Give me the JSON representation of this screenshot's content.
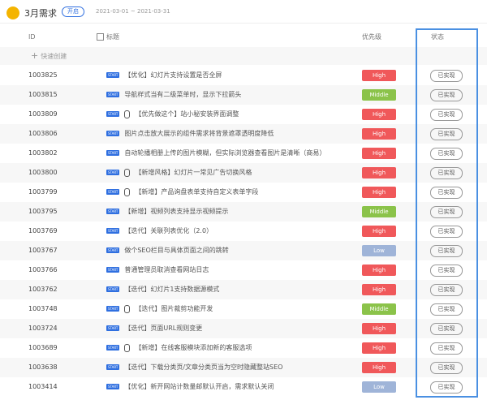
{
  "header": {
    "title": "3月需求",
    "badge": "开启",
    "date_range": "2021-03-01 ~ 2021-03-31"
  },
  "table": {
    "columns": [
      "ID",
      "标题",
      "优先级",
      "状态"
    ],
    "quick_create": "快速创建",
    "tag": "START",
    "rows": [
      {
        "id": "1003825",
        "title": "【优化】幻灯片支持设置是否全屏",
        "attachment": false,
        "priority": "High",
        "status": "已实现"
      },
      {
        "id": "1003815",
        "title": "导航样式当有二级菜单时，显示下拉箭头",
        "attachment": false,
        "priority": "Middle",
        "status": "已实现"
      },
      {
        "id": "1003809",
        "title": "【优先做这个】站小秘安装界面调整",
        "attachment": true,
        "priority": "High",
        "status": "已实现"
      },
      {
        "id": "1003806",
        "title": "图片点击放大展示的组件需求将背景遮罩透明度降低",
        "attachment": false,
        "priority": "High",
        "status": "已实现"
      },
      {
        "id": "1003802",
        "title": "自动轮播相册上传的图片模糊，但实际浏览器查看图片是清晰（商易）",
        "attachment": false,
        "priority": "High",
        "status": "已实现"
      },
      {
        "id": "1003800",
        "title": "【新增风格】幻灯片一常见广告切换风格",
        "attachment": true,
        "priority": "High",
        "status": "已实现"
      },
      {
        "id": "1003799",
        "title": "【新增】产品询盘表单支持自定义表单字段",
        "attachment": true,
        "priority": "High",
        "status": "已实现"
      },
      {
        "id": "1003795",
        "title": "【新增】视频列表支持显示视频提示",
        "attachment": false,
        "priority": "Middle",
        "status": "已实现"
      },
      {
        "id": "1003769",
        "title": "【迭代】关联列表优化（2.0）",
        "attachment": false,
        "priority": "High",
        "status": "已实现"
      },
      {
        "id": "1003767",
        "title": "做个SEO栏目与具体页面之间的跳转",
        "attachment": false,
        "priority": "Low",
        "status": "已实现"
      },
      {
        "id": "1003766",
        "title": "普通管理员取消查看网站日志",
        "attachment": false,
        "priority": "High",
        "status": "已实现"
      },
      {
        "id": "1003762",
        "title": "【迭代】幻灯片1支持数据源模式",
        "attachment": false,
        "priority": "High",
        "status": "已实现"
      },
      {
        "id": "1003748",
        "title": "【迭代】图片裁剪功能开发",
        "attachment": true,
        "priority": "Middle",
        "status": "已实现"
      },
      {
        "id": "1003724",
        "title": "【迭代】页面URL规则变更",
        "attachment": false,
        "priority": "High",
        "status": "已实现"
      },
      {
        "id": "1003689",
        "title": "【新增】在线客服模块添加新的客服选项",
        "attachment": true,
        "priority": "High",
        "status": "已实现"
      },
      {
        "id": "1003638",
        "title": "【迭代】下载分类页/文章分类页当为空时隐藏整站SEO",
        "attachment": false,
        "priority": "High",
        "status": "已实现"
      },
      {
        "id": "1003414",
        "title": "【优化】新开网站计数量邮默认开启，需求默认关闭",
        "attachment": false,
        "priority": "Low",
        "status": "已实现"
      }
    ]
  }
}
